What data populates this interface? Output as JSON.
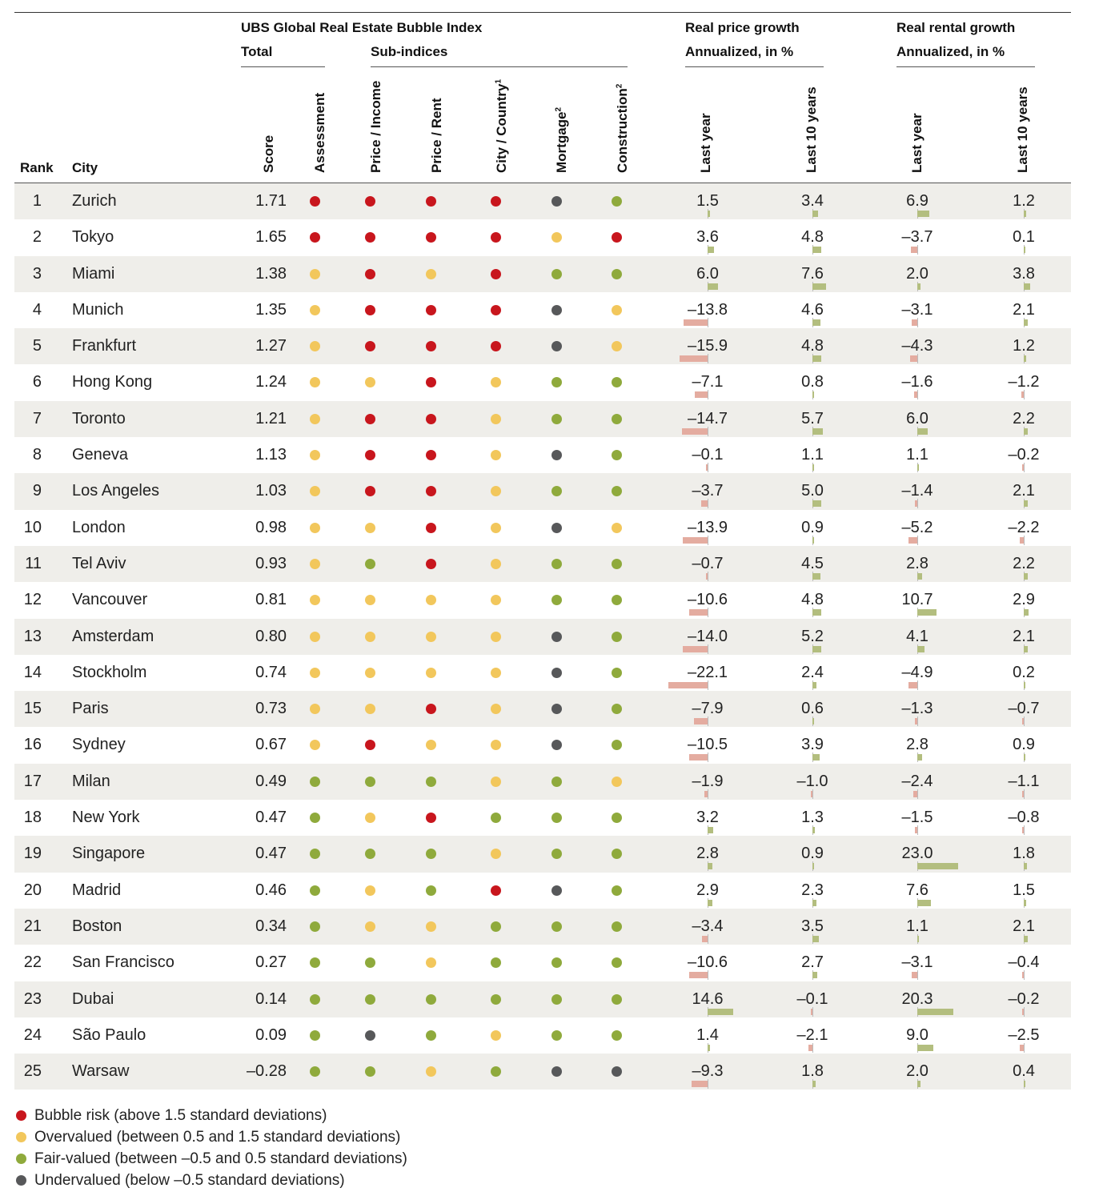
{
  "header": {
    "index_title": "UBS Global Real Estate Bubble Index",
    "total_label": "Total",
    "subindices_label": "Sub-indices",
    "price_growth_title": "Real price growth",
    "price_growth_sub": "Annualized, in %",
    "rental_growth_title": "Real rental growth",
    "rental_growth_sub": "Annualized, in %",
    "rank_label": "Rank",
    "city_label": "City",
    "score_label": "Score",
    "assessment_label": "Assessment",
    "price_income_label": "Price / Income",
    "price_rent_label": "Price / Rent",
    "city_country_label": "City / Country",
    "city_country_sup": "1",
    "mortgage_label": "Mortgage",
    "mortgage_sup": "2",
    "construction_label": "Construction",
    "construction_sup": "2",
    "price_last_year_label": "Last year",
    "price_10y_label": "Last 10 years",
    "rent_last_year_label": "Last year",
    "rent_10y_label": "Last 10 years"
  },
  "colors": {
    "bubble": "#c8161d",
    "overvalued": "#f2c75c",
    "fair": "#8faa3c",
    "undervalued": "#57585a",
    "bar_pos": "#b3be7f",
    "bar_neg": "#e4aca0"
  },
  "rows": [
    {
      "rank": "1",
      "city": "Zurich",
      "score": "1.71",
      "dots": [
        "bubble",
        "bubble",
        "bubble",
        "bubble",
        "undervalued",
        "fair"
      ],
      "price_ly": "1.5",
      "price_10y": "3.4",
      "rent_ly": "6.9",
      "rent_10y": "1.2"
    },
    {
      "rank": "2",
      "city": "Tokyo",
      "score": "1.65",
      "dots": [
        "bubble",
        "bubble",
        "bubble",
        "bubble",
        "overvalued",
        "bubble"
      ],
      "price_ly": "3.6",
      "price_10y": "4.8",
      "rent_ly": "–3.7",
      "rent_10y": "0.1"
    },
    {
      "rank": "3",
      "city": "Miami",
      "score": "1.38",
      "dots": [
        "overvalued",
        "bubble",
        "overvalued",
        "bubble",
        "fair",
        "fair"
      ],
      "price_ly": "6.0",
      "price_10y": "7.6",
      "rent_ly": "2.0",
      "rent_10y": "3.8"
    },
    {
      "rank": "4",
      "city": "Munich",
      "score": "1.35",
      "dots": [
        "overvalued",
        "bubble",
        "bubble",
        "bubble",
        "undervalued",
        "overvalued"
      ],
      "price_ly": "–13.8",
      "price_10y": "4.6",
      "rent_ly": "–3.1",
      "rent_10y": "2.1"
    },
    {
      "rank": "5",
      "city": "Frankfurt",
      "score": "1.27",
      "dots": [
        "overvalued",
        "bubble",
        "bubble",
        "bubble",
        "undervalued",
        "overvalued"
      ],
      "price_ly": "–15.9",
      "price_10y": "4.8",
      "rent_ly": "–4.3",
      "rent_10y": "1.2"
    },
    {
      "rank": "6",
      "city": "Hong Kong",
      "score": "1.24",
      "dots": [
        "overvalued",
        "overvalued",
        "bubble",
        "overvalued",
        "fair",
        "fair"
      ],
      "price_ly": "–7.1",
      "price_10y": "0.8",
      "rent_ly": "–1.6",
      "rent_10y": "–1.2"
    },
    {
      "rank": "7",
      "city": "Toronto",
      "score": "1.21",
      "dots": [
        "overvalued",
        "bubble",
        "bubble",
        "overvalued",
        "fair",
        "fair"
      ],
      "price_ly": "–14.7",
      "price_10y": "5.7",
      "rent_ly": "6.0",
      "rent_10y": "2.2"
    },
    {
      "rank": "8",
      "city": "Geneva",
      "score": "1.13",
      "dots": [
        "overvalued",
        "bubble",
        "bubble",
        "overvalued",
        "undervalued",
        "fair"
      ],
      "price_ly": "–0.1",
      "price_10y": "1.1",
      "rent_ly": "1.1",
      "rent_10y": "–0.2"
    },
    {
      "rank": "9",
      "city": "Los Angeles",
      "score": "1.03",
      "dots": [
        "overvalued",
        "bubble",
        "bubble",
        "overvalued",
        "fair",
        "fair"
      ],
      "price_ly": "–3.7",
      "price_10y": "5.0",
      "rent_ly": "–1.4",
      "rent_10y": "2.1"
    },
    {
      "rank": "10",
      "city": "London",
      "score": "0.98",
      "dots": [
        "overvalued",
        "overvalued",
        "bubble",
        "overvalued",
        "undervalued",
        "overvalued"
      ],
      "price_ly": "–13.9",
      "price_10y": "0.9",
      "rent_ly": "–5.2",
      "rent_10y": "–2.2"
    },
    {
      "rank": "11",
      "city": "Tel Aviv",
      "score": "0.93",
      "dots": [
        "overvalued",
        "fair",
        "bubble",
        "overvalued",
        "fair",
        "fair"
      ],
      "price_ly": "–0.7",
      "price_10y": "4.5",
      "rent_ly": "2.8",
      "rent_10y": "2.2"
    },
    {
      "rank": "12",
      "city": "Vancouver",
      "score": "0.81",
      "dots": [
        "overvalued",
        "overvalued",
        "overvalued",
        "overvalued",
        "fair",
        "fair"
      ],
      "price_ly": "–10.6",
      "price_10y": "4.8",
      "rent_ly": "10.7",
      "rent_10y": "2.9"
    },
    {
      "rank": "13",
      "city": "Amsterdam",
      "score": "0.80",
      "dots": [
        "overvalued",
        "overvalued",
        "overvalued",
        "overvalued",
        "undervalued",
        "fair"
      ],
      "price_ly": "–14.0",
      "price_10y": "5.2",
      "rent_ly": "4.1",
      "rent_10y": "2.1"
    },
    {
      "rank": "14",
      "city": "Stockholm",
      "score": "0.74",
      "dots": [
        "overvalued",
        "overvalued",
        "overvalued",
        "overvalued",
        "undervalued",
        "fair"
      ],
      "price_ly": "–22.1",
      "price_10y": "2.4",
      "rent_ly": "–4.9",
      "rent_10y": "0.2"
    },
    {
      "rank": "15",
      "city": "Paris",
      "score": "0.73",
      "dots": [
        "overvalued",
        "overvalued",
        "bubble",
        "overvalued",
        "undervalued",
        "fair"
      ],
      "price_ly": "–7.9",
      "price_10y": "0.6",
      "rent_ly": "–1.3",
      "rent_10y": "–0.7"
    },
    {
      "rank": "16",
      "city": "Sydney",
      "score": "0.67",
      "dots": [
        "overvalued",
        "bubble",
        "overvalued",
        "overvalued",
        "undervalued",
        "fair"
      ],
      "price_ly": "–10.5",
      "price_10y": "3.9",
      "rent_ly": "2.8",
      "rent_10y": "0.9"
    },
    {
      "rank": "17",
      "city": "Milan",
      "score": "0.49",
      "dots": [
        "fair",
        "fair",
        "fair",
        "overvalued",
        "fair",
        "overvalued"
      ],
      "price_ly": "–1.9",
      "price_10y": "–1.0",
      "rent_ly": "–2.4",
      "rent_10y": "–1.1"
    },
    {
      "rank": "18",
      "city": "New York",
      "score": "0.47",
      "dots": [
        "fair",
        "overvalued",
        "bubble",
        "fair",
        "fair",
        "fair"
      ],
      "price_ly": "3.2",
      "price_10y": "1.3",
      "rent_ly": "–1.5",
      "rent_10y": "–0.8"
    },
    {
      "rank": "19",
      "city": "Singapore",
      "score": "0.47",
      "dots": [
        "fair",
        "fair",
        "fair",
        "overvalued",
        "fair",
        "fair"
      ],
      "price_ly": "2.8",
      "price_10y": "0.9",
      "rent_ly": "23.0",
      "rent_10y": "1.8"
    },
    {
      "rank": "20",
      "city": "Madrid",
      "score": "0.46",
      "dots": [
        "fair",
        "overvalued",
        "fair",
        "bubble",
        "undervalued",
        "fair"
      ],
      "price_ly": "2.9",
      "price_10y": "2.3",
      "rent_ly": "7.6",
      "rent_10y": "1.5"
    },
    {
      "rank": "21",
      "city": "Boston",
      "score": "0.34",
      "dots": [
        "fair",
        "overvalued",
        "overvalued",
        "fair",
        "fair",
        "fair"
      ],
      "price_ly": "–3.4",
      "price_10y": "3.5",
      "rent_ly": "1.1",
      "rent_10y": "2.1"
    },
    {
      "rank": "22",
      "city": "San Francisco",
      "score": "0.27",
      "dots": [
        "fair",
        "fair",
        "overvalued",
        "fair",
        "fair",
        "fair"
      ],
      "price_ly": "–10.6",
      "price_10y": "2.7",
      "rent_ly": "–3.1",
      "rent_10y": "–0.4"
    },
    {
      "rank": "23",
      "city": "Dubai",
      "score": "0.14",
      "dots": [
        "fair",
        "fair",
        "fair",
        "fair",
        "fair",
        "fair"
      ],
      "price_ly": "14.6",
      "price_10y": "–0.1",
      "rent_ly": "20.3",
      "rent_10y": "–0.2"
    },
    {
      "rank": "24",
      "city": "São Paulo",
      "score": "0.09",
      "dots": [
        "fair",
        "undervalued",
        "fair",
        "overvalued",
        "fair",
        "fair"
      ],
      "price_ly": "1.4",
      "price_10y": "–2.1",
      "rent_ly": "9.0",
      "rent_10y": "–2.5"
    },
    {
      "rank": "25",
      "city": "Warsaw",
      "score": "–0.28",
      "dots": [
        "fair",
        "fair",
        "overvalued",
        "fair",
        "undervalued",
        "undervalued"
      ],
      "price_ly": "–9.3",
      "price_10y": "1.8",
      "rent_ly": "2.0",
      "rent_10y": "0.4"
    }
  ],
  "legend": [
    {
      "color": "bubble",
      "label": "Bubble risk (above 1.5 standard deviations)"
    },
    {
      "color": "overvalued",
      "label": "Overvalued (between 0.5 and 1.5 standard deviations)"
    },
    {
      "color": "fair",
      "label": "Fair-valued (between –0.5 and 0.5 standard deviations)"
    },
    {
      "color": "undervalued",
      "label": "Undervalued (below –0.5 standard deviations)"
    }
  ]
}
